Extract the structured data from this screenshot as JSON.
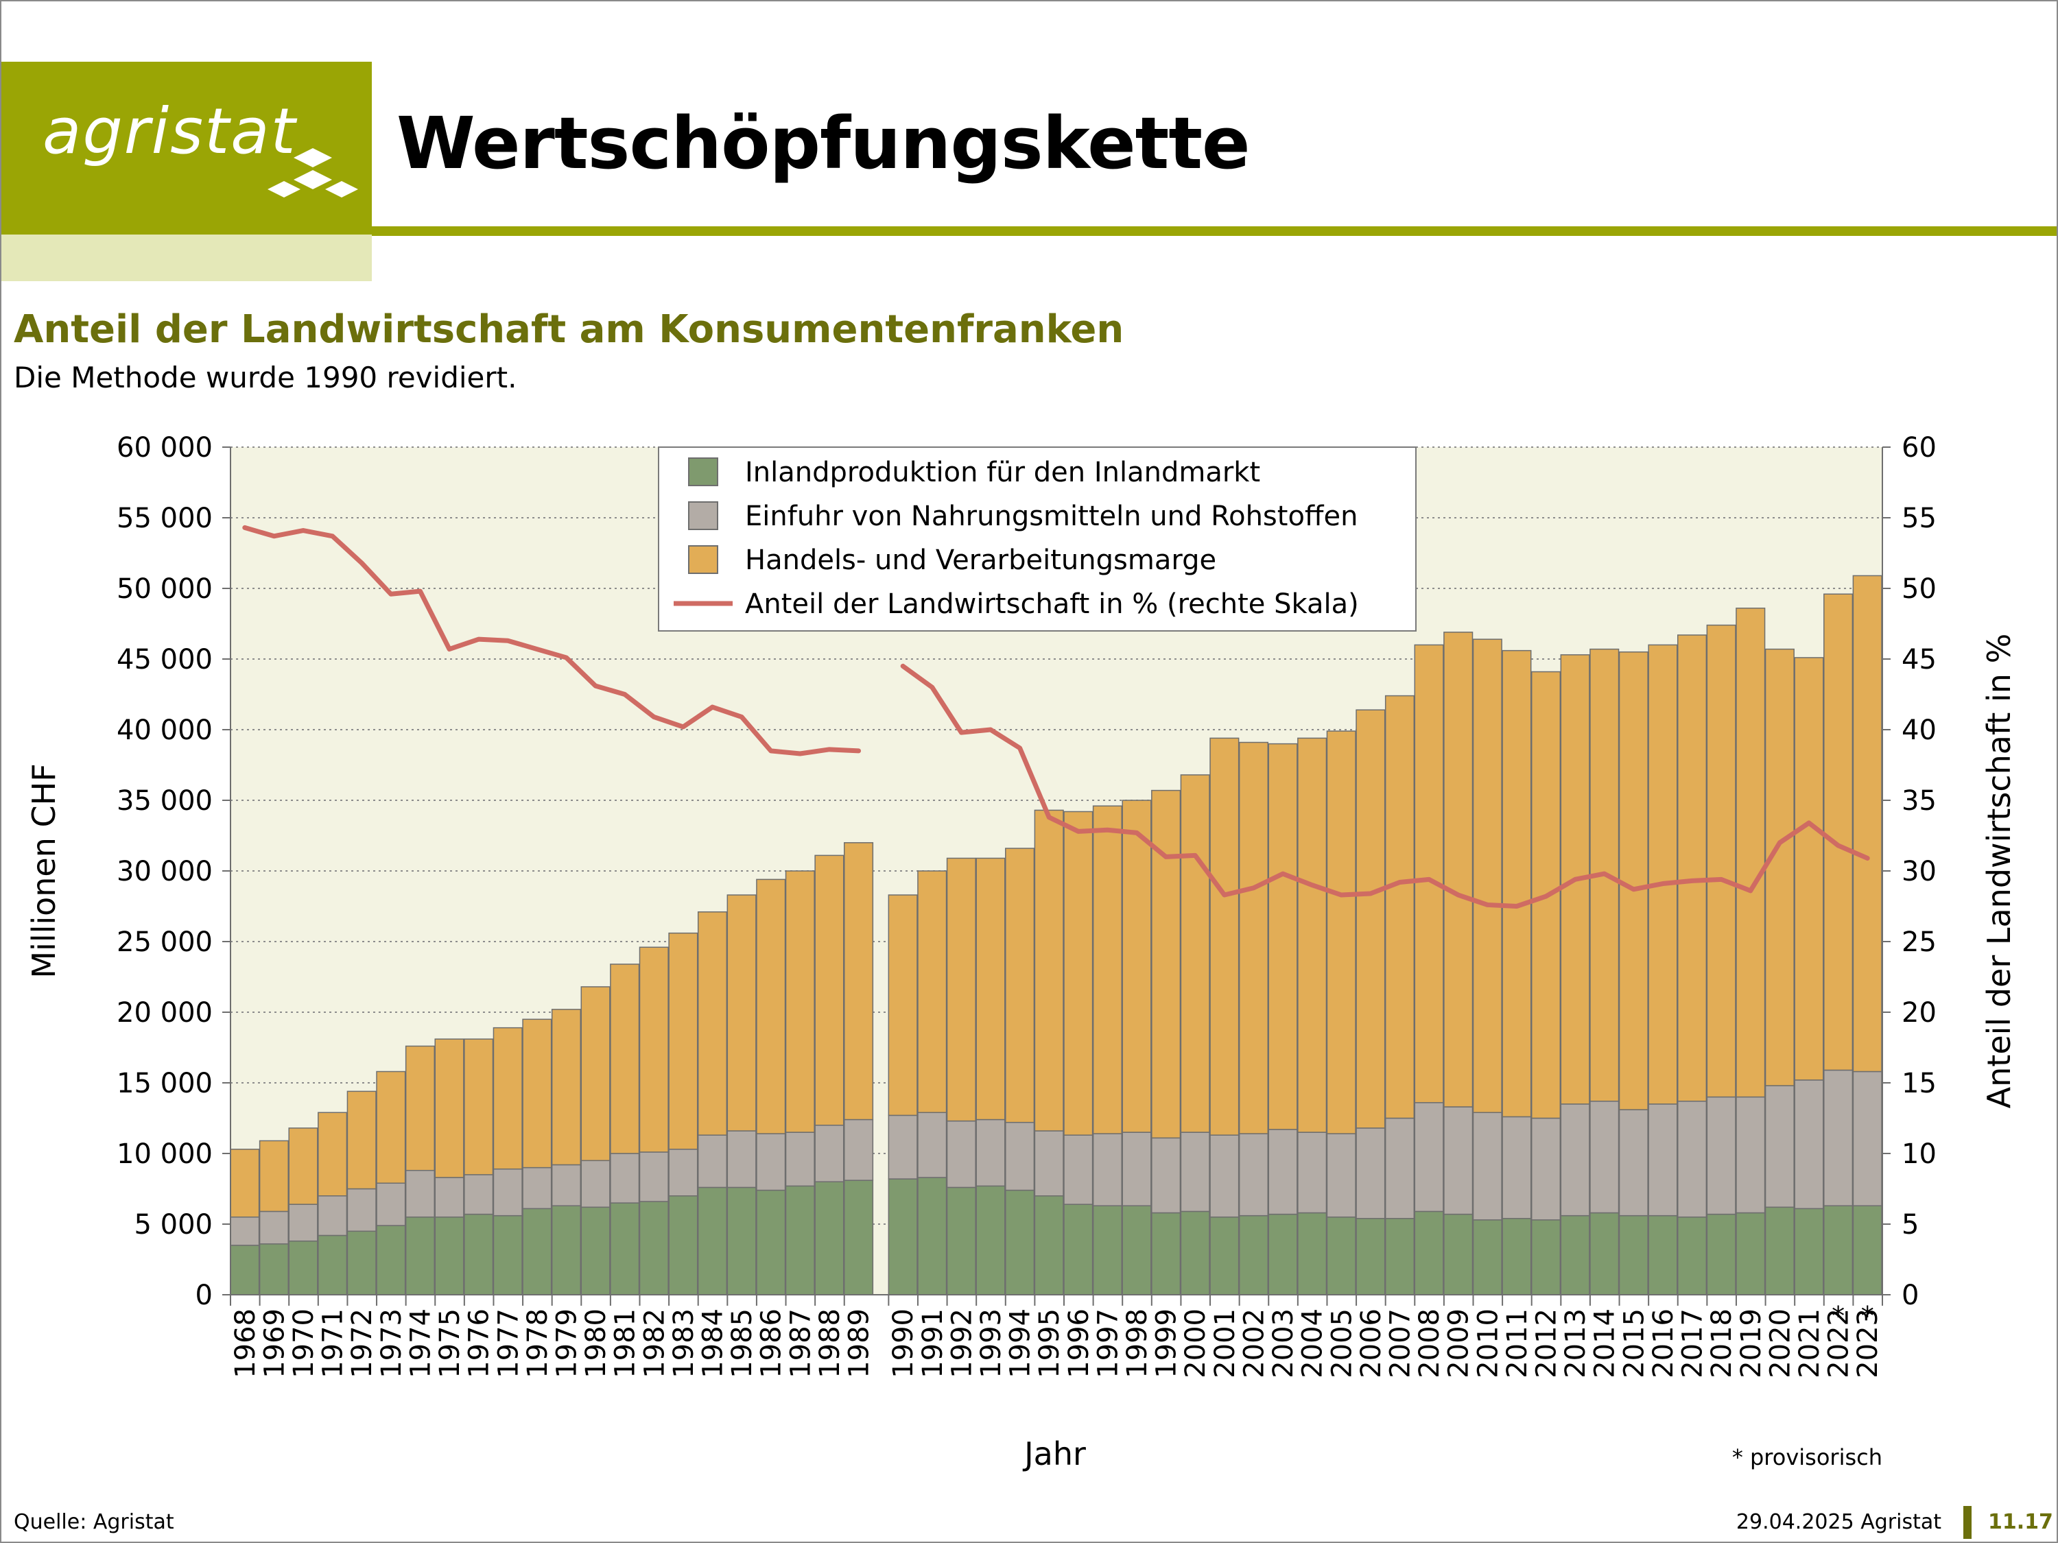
{
  "header": {
    "logo_text": "agristat",
    "page_title": "Wertschöpfungskette"
  },
  "colors": {
    "brand": "#9aa505",
    "brand_light": "#e4e8b8",
    "title_green": "#6b6f0c",
    "plot_bg": "#f3f3e2",
    "inland": "#7f9a6e",
    "import": "#b3aca6",
    "marge": "#e2ad56",
    "share_line": "#cf6b63"
  },
  "chart_data": {
    "type": "bar",
    "stacked": true,
    "title": "Anteil der Landwirtschaft am Konsumentenfranken",
    "subtitle": "Die Methode wurde 1990 revidiert.",
    "xlabel": "Jahr",
    "ylabel": "Millionen CHF",
    "y2label": "Anteil der Landwirtschaft in %",
    "ylim": [
      0,
      60000
    ],
    "y2lim": [
      0,
      60
    ],
    "yticks": [
      "0",
      "5 000",
      "10 000",
      "15 000",
      "20 000",
      "25 000",
      "30 000",
      "35 000",
      "40 000",
      "45 000",
      "50 000",
      "55 000",
      "60 000"
    ],
    "y2ticks": [
      "0",
      "5",
      "10",
      "15",
      "20",
      "25",
      "30",
      "35",
      "40",
      "45",
      "50",
      "55",
      "60"
    ],
    "grid": "horizontal dotted",
    "legend_position": "top-center",
    "method_break": "1989/1990",
    "provisional_note": "* provisorisch",
    "provisional_years": [
      "2022",
      "2023"
    ],
    "categories": [
      "1968",
      "1969",
      "1970",
      "1971",
      "1972",
      "1973",
      "1974",
      "1975",
      "1976",
      "1977",
      "1978",
      "1979",
      "1980",
      "1981",
      "1982",
      "1983",
      "1984",
      "1985",
      "1986",
      "1987",
      "1988",
      "1989",
      "1990",
      "1991",
      "1992",
      "1993",
      "1994",
      "1995",
      "1996",
      "1997",
      "1998",
      "1999",
      "2000",
      "2001",
      "2002",
      "2003",
      "2004",
      "2005",
      "2006",
      "2007",
      "2008",
      "2009",
      "2010",
      "2011",
      "2012",
      "2013",
      "2014",
      "2015",
      "2016",
      "2017",
      "2018",
      "2019",
      "2020",
      "2021",
      "2022",
      "2023"
    ],
    "series": [
      {
        "name": "Inlandproduktion für den Inlandmarkt",
        "type": "bar",
        "values": [
          3500,
          3600,
          3800,
          4200,
          4500,
          4900,
          5500,
          5500,
          5700,
          5600,
          6100,
          6300,
          6200,
          6500,
          6600,
          7000,
          7600,
          7600,
          7400,
          7700,
          8000,
          8100,
          8200,
          8300,
          7600,
          7700,
          7400,
          7000,
          6400,
          6300,
          6300,
          5800,
          5900,
          5500,
          5600,
          5700,
          5800,
          5500,
          5400,
          5400,
          5900,
          5700,
          5300,
          5400,
          5300,
          5600,
          5800,
          5600,
          5600,
          5500,
          5700,
          5800,
          6200,
          6100,
          6300,
          6300
        ]
      },
      {
        "name": "Einfuhr von Nahrungsmitteln und Rohstoffen",
        "type": "bar",
        "values": [
          2000,
          2300,
          2600,
          2800,
          3000,
          3000,
          3300,
          2800,
          2800,
          3300,
          2900,
          2900,
          3300,
          3500,
          3500,
          3300,
          3700,
          4000,
          4000,
          3800,
          4000,
          4300,
          4500,
          4600,
          4700,
          4700,
          4800,
          4600,
          4900,
          5100,
          5200,
          5300,
          5600,
          5800,
          5800,
          6000,
          5700,
          5900,
          6400,
          7100,
          7700,
          7600,
          7600,
          7200,
          7200,
          7900,
          7900,
          7500,
          7900,
          8200,
          8300,
          8200,
          8600,
          9100,
          9600,
          9500
        ]
      },
      {
        "name": "Handels- und Verarbeitungsmarge",
        "type": "bar",
        "values": [
          4800,
          5000,
          5400,
          5900,
          6900,
          7900,
          8800,
          9800,
          9600,
          10000,
          10500,
          11000,
          12300,
          13400,
          14500,
          15300,
          15800,
          16700,
          18000,
          18500,
          19100,
          19600,
          15600,
          17100,
          18600,
          18500,
          19400,
          22700,
          22900,
          23200,
          23500,
          24600,
          25300,
          28100,
          27700,
          27300,
          27900,
          28500,
          29600,
          29900,
          32400,
          33600,
          33500,
          33000,
          31600,
          31800,
          32000,
          32400,
          32500,
          33000,
          33400,
          34600,
          30900,
          29900,
          33700,
          35100
        ]
      },
      {
        "name": "Anteil der Landwirtschaft in % (rechte Skala)",
        "type": "line",
        "axis": "right",
        "values": [
          54.3,
          53.7,
          54.1,
          53.7,
          51.8,
          49.6,
          49.8,
          45.7,
          46.4,
          46.3,
          45.7,
          45.1,
          43.1,
          42.5,
          40.9,
          40.2,
          41.6,
          40.9,
          38.5,
          38.3,
          38.6,
          38.5,
          44.5,
          43.0,
          39.8,
          40.0,
          38.7,
          33.8,
          32.8,
          32.9,
          32.7,
          31.0,
          31.1,
          28.3,
          28.8,
          29.8,
          29.0,
          28.3,
          28.4,
          29.2,
          29.4,
          28.3,
          27.6,
          27.5,
          28.2,
          29.4,
          29.8,
          28.7,
          29.1,
          29.3,
          29.4,
          28.6,
          32.0,
          33.4,
          31.8,
          30.9
        ]
      }
    ]
  },
  "footer": {
    "source": "Quelle: Agristat",
    "date": "29.04.2025 Agristat",
    "page": "11.17"
  }
}
